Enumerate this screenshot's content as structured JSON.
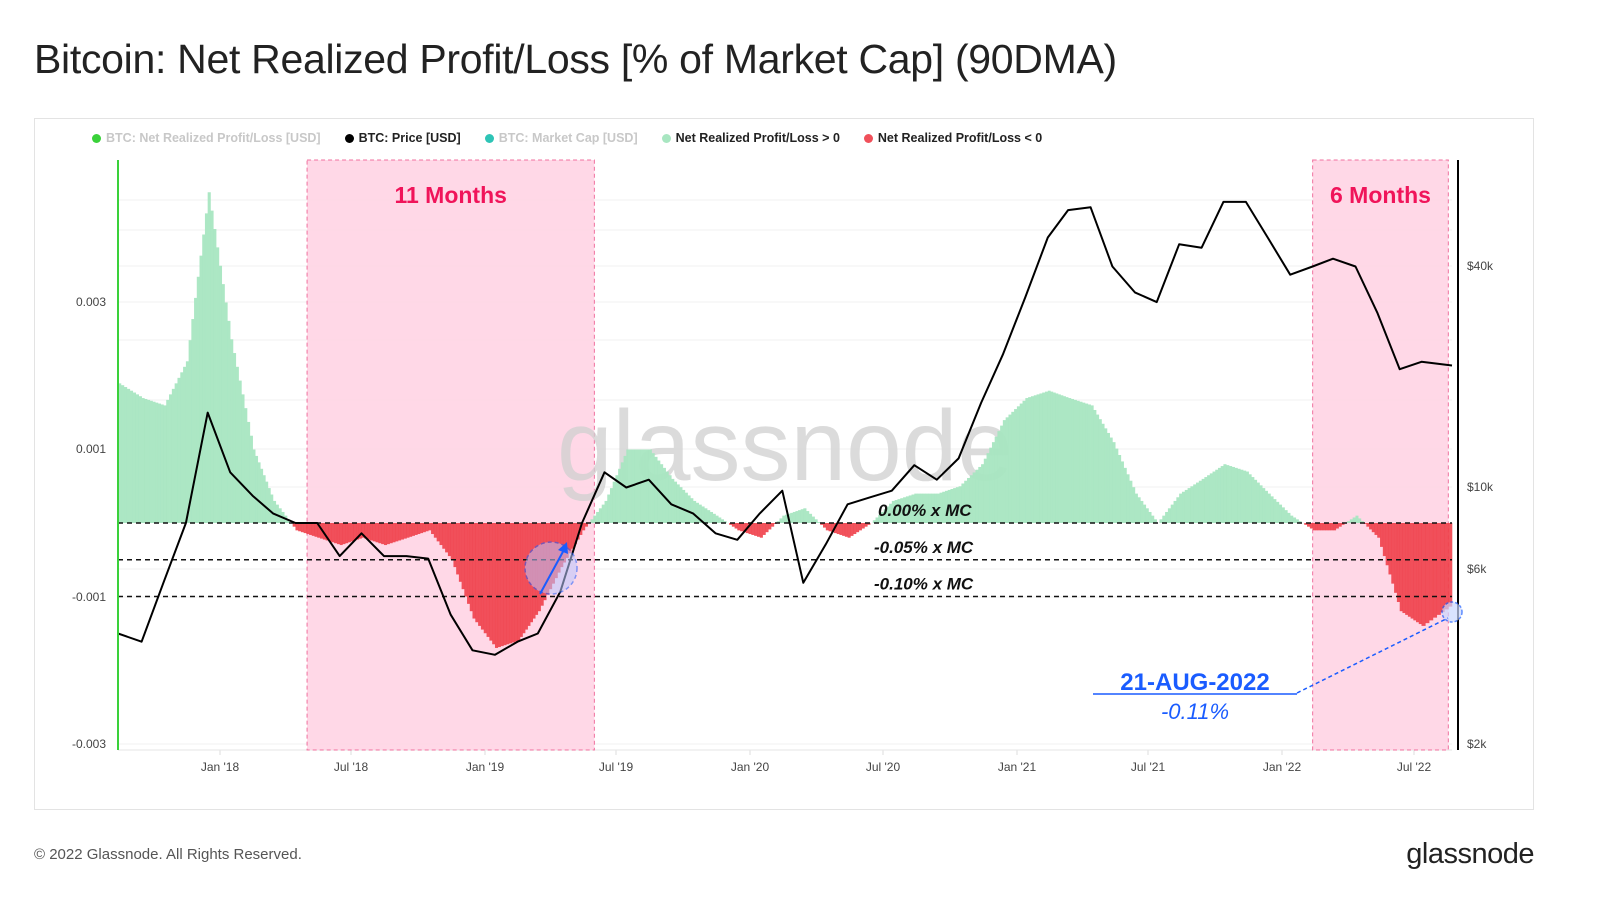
{
  "title": "Bitcoin: Net Realized Profit/Loss [% of Market Cap] (90DMA)",
  "legend": [
    {
      "label": "BTC: Net Realized Profit/Loss [USD]",
      "color": "#3ad13a",
      "active": false
    },
    {
      "label": "BTC: Price [USD]",
      "color": "#000000",
      "active": true
    },
    {
      "label": "BTC: Market Cap [USD]",
      "color": "#2ec4b6",
      "active": false
    },
    {
      "label": "Net Realized Profit/Loss > 0",
      "color": "#a8e6c1",
      "active": true
    },
    {
      "label": "Net Realized Profit/Loss < 0",
      "color": "#f0505a",
      "active": true
    }
  ],
  "footer": {
    "copyright": "© 2022 Glassnode. All Rights Reserved.",
    "logo": "glassnode"
  },
  "watermark": "glassnode",
  "chart_data": {
    "type": "area",
    "title": "Bitcoin: Net Realized Profit/Loss [% of Market Cap] (90DMA)",
    "x_ticks": [
      "Jan '18",
      "Jul '18",
      "Jan '19",
      "Jul '19",
      "Jan '20",
      "Jul '20",
      "Jan '21",
      "Jul '21",
      "Jan '22",
      "Jul '22"
    ],
    "x_range": [
      "2017-08-15",
      "2022-08-21"
    ],
    "y_left": {
      "ticks": [
        "0.003",
        "0.001",
        "-0.001",
        "-0.003"
      ],
      "scale": "linear"
    },
    "y_right": {
      "ticks": [
        "$40k",
        "$10k",
        "$6k",
        "$2k"
      ],
      "scale": "log",
      "range": [
        2000,
        80000
      ]
    },
    "grid": true,
    "legend_position": "top-left",
    "dates": [
      "2017-08",
      "2017-09",
      "2017-10",
      "2017-11",
      "2017-12",
      "2018-01",
      "2018-02",
      "2018-03",
      "2018-04",
      "2018-05",
      "2018-06",
      "2018-07",
      "2018-08",
      "2018-09",
      "2018-10",
      "2018-11",
      "2018-12",
      "2019-01",
      "2019-02",
      "2019-03",
      "2019-04",
      "2019-05",
      "2019-06",
      "2019-07",
      "2019-08",
      "2019-09",
      "2019-10",
      "2019-11",
      "2019-12",
      "2020-01",
      "2020-02",
      "2020-03",
      "2020-04",
      "2020-05",
      "2020-06",
      "2020-07",
      "2020-08",
      "2020-09",
      "2020-10",
      "2020-11",
      "2020-12",
      "2021-01",
      "2021-02",
      "2021-03",
      "2021-04",
      "2021-05",
      "2021-06",
      "2021-07",
      "2021-08",
      "2021-09",
      "2021-10",
      "2021-11",
      "2021-12",
      "2022-01",
      "2022-02",
      "2022-03",
      "2022-04",
      "2022-05",
      "2022-06",
      "2022-07",
      "2022-08"
    ],
    "series": [
      {
        "name": "Net Realized Profit/Loss",
        "axis": "left",
        "colors": {
          "positive": "#a8e6c1",
          "negative": "#f0404a"
        },
        "values": [
          0.0019,
          0.0017,
          0.0016,
          0.0022,
          0.0045,
          0.0025,
          0.001,
          0.0003,
          -0.0001,
          -0.0002,
          -0.0003,
          -0.0002,
          -0.0003,
          -0.0002,
          -0.0001,
          -0.0005,
          -0.0013,
          -0.0017,
          -0.0016,
          -0.0012,
          -0.0006,
          -0.0001,
          0.0003,
          0.001,
          0.001,
          0.0006,
          0.0003,
          0.0001,
          -0.0001,
          -0.0002,
          0.0001,
          0.0002,
          -0.0001,
          -0.0002,
          0.0,
          0.0003,
          0.0004,
          0.0004,
          0.0005,
          0.0008,
          0.0014,
          0.0017,
          0.0018,
          0.0017,
          0.0016,
          0.0011,
          0.0004,
          0.0,
          0.0004,
          0.0006,
          0.0008,
          0.0007,
          0.0004,
          0.0001,
          -0.0001,
          -0.0001,
          0.0001,
          -0.0002,
          -0.0012,
          -0.0014,
          -0.0011
        ]
      },
      {
        "name": "BTC: Price [USD]",
        "axis": "right",
        "color": "#000000",
        "values": [
          4000,
          3800,
          5500,
          8000,
          16000,
          11000,
          9500,
          8500,
          8000,
          8000,
          6500,
          7500,
          6500,
          6500,
          6400,
          4500,
          3600,
          3500,
          3800,
          4000,
          5200,
          8000,
          11000,
          10000,
          10500,
          9000,
          8500,
          7500,
          7200,
          8500,
          9800,
          5500,
          7000,
          9000,
          9400,
          9800,
          11500,
          10500,
          12000,
          17000,
          23000,
          33000,
          48000,
          57000,
          58000,
          40000,
          34000,
          32000,
          46000,
          45000,
          60000,
          60000,
          48000,
          38000,
          40000,
          42000,
          40000,
          30000,
          21000,
          22000,
          21500
        ]
      }
    ],
    "reference_lines": [
      {
        "label": "0.00% x MC",
        "value": 0
      },
      {
        "label": "-0.05% x MC",
        "value": -0.0005
      },
      {
        "label": "-0.10% x MC",
        "value": -0.001
      }
    ],
    "shaded_periods": [
      {
        "label": "11 Months",
        "start": "2018-05-01",
        "end": "2019-06-01",
        "color": "#ffd6e6"
      },
      {
        "label": "6 Months",
        "start": "2022-02-15",
        "end": "2022-08-21",
        "color": "#ffd6e6"
      }
    ],
    "annotation": {
      "date_label": "21-AUG-2022",
      "value_label": "-0.11%",
      "color": "#1a5cff"
    }
  }
}
